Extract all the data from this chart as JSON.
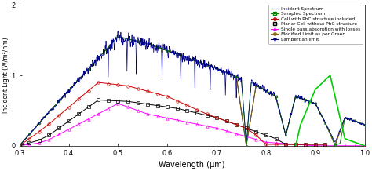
{
  "xlabel": "Wavelength (μm)",
  "ylabel": "Incident Light (W/m²/nm)",
  "xlim": [
    0.3,
    1.0
  ],
  "ylim": [
    0,
    2
  ],
  "yticks": [
    0,
    1,
    2
  ],
  "xticks": [
    0.3,
    0.4,
    0.5,
    0.6,
    0.7,
    0.8,
    0.9,
    1.0
  ],
  "legend_entries": [
    "Incident Spectrum",
    "Sampled Spectrum",
    "Cell with PhC structure included",
    "Planar Cell without PhC structure",
    "Single pass absorption with losses",
    "Modified Limit as per Green",
    "Lambertian limit"
  ],
  "colors": {
    "incident": "#00008B",
    "sampled": "#008800",
    "phc": "#CC0000",
    "planar": "#000000",
    "single": "#FF00FF",
    "modified": "#8B6400",
    "lambertian": "#000080"
  },
  "figsize": [
    4.74,
    2.18
  ],
  "dpi": 100
}
